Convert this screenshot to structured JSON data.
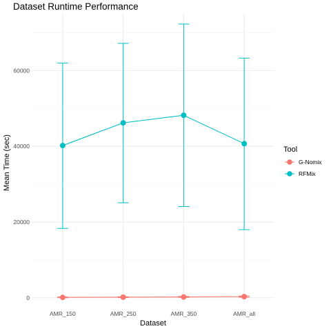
{
  "chart_data": {
    "type": "line",
    "title": "Dataset Runtime Performance",
    "xlabel": "Dataset",
    "ylabel": "Mean Time (sec)",
    "categories": [
      "AMR_150",
      "AMR_250",
      "AMR_350",
      "AMR_all"
    ],
    "ylim": [
      -1500,
      75000
    ],
    "yticks": [
      0,
      20000,
      40000,
      60000
    ],
    "grid": true,
    "legend_title": "Tool",
    "legend_position": "right",
    "series": [
      {
        "name": "G-Nomix",
        "color": "#F8766D",
        "values": [
          100,
          150,
          200,
          300
        ],
        "error_low": [
          0,
          50,
          100,
          150
        ],
        "error_high": [
          200,
          250,
          350,
          450
        ]
      },
      {
        "name": "RFMix",
        "color": "#00BFC4",
        "values": [
          40200,
          46200,
          48200,
          40700
        ],
        "error_low": [
          18300,
          25100,
          24100,
          18000
        ],
        "error_high": [
          62000,
          67200,
          72300,
          63300
        ]
      }
    ]
  }
}
